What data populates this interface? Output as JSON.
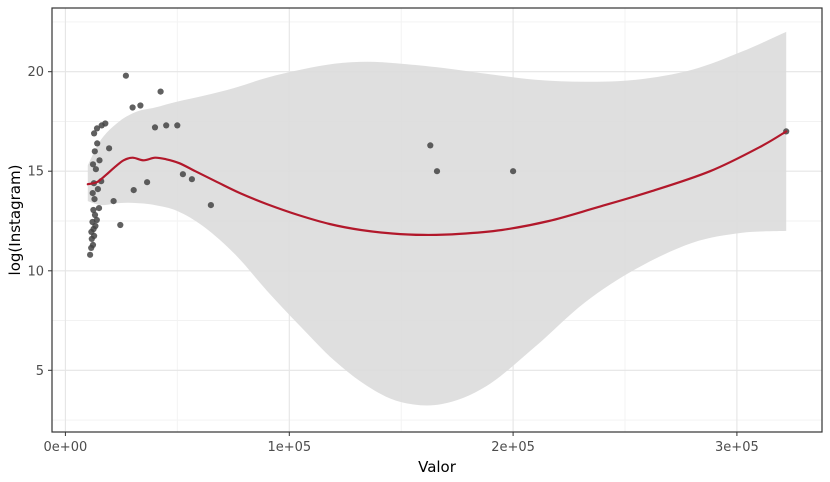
{
  "chart_data": {
    "type": "scatter",
    "title": "",
    "xlabel": "Valor",
    "ylabel": "log(Instagram)",
    "xlim": [
      -6000,
      338000
    ],
    "ylim": [
      1.9,
      23.2
    ],
    "grid": true,
    "legend": "none",
    "x_ticks": {
      "values": [
        0,
        100000,
        200000,
        300000
      ],
      "labels": [
        "0e+00",
        "1e+05",
        "2e+05",
        "3e+05"
      ]
    },
    "y_ticks": {
      "values": [
        5,
        10,
        15,
        20
      ],
      "labels": [
        "5",
        "10",
        "15",
        "20"
      ]
    },
    "x_minor": [
      50000,
      150000,
      250000
    ],
    "y_minor": [
      2.5,
      7.5,
      12.5,
      17.5,
      22.5
    ],
    "colors": {
      "point": "#444444",
      "smooth_line": "#b2182b",
      "ci_band": "#dcdcdc",
      "panel_bg": "#ffffff",
      "panel_border": "#333333",
      "grid_major": "#e5e5e5",
      "grid_minor": "#f2f2f2",
      "axis_text": "#4d4d4d",
      "tick_mark": "#333333"
    },
    "points": [
      [
        11000,
        10.8
      ],
      [
        11500,
        11.15
      ],
      [
        12300,
        11.3
      ],
      [
        11800,
        11.6
      ],
      [
        12800,
        11.75
      ],
      [
        11600,
        11.95
      ],
      [
        12600,
        12.1
      ],
      [
        13400,
        12.25
      ],
      [
        12100,
        12.45
      ],
      [
        14000,
        12.55
      ],
      [
        13200,
        12.8
      ],
      [
        12500,
        13.05
      ],
      [
        15000,
        13.15
      ],
      [
        13000,
        13.6
      ],
      [
        12200,
        13.9
      ],
      [
        14500,
        14.1
      ],
      [
        12700,
        14.4
      ],
      [
        16000,
        14.5
      ],
      [
        13600,
        15.1
      ],
      [
        12300,
        15.35
      ],
      [
        15200,
        15.55
      ],
      [
        13100,
        16.0
      ],
      [
        14200,
        16.4
      ],
      [
        12800,
        16.9
      ],
      [
        14100,
        17.15
      ],
      [
        16200,
        17.3
      ],
      [
        17800,
        17.4
      ],
      [
        19500,
        16.15
      ],
      [
        21500,
        13.5
      ],
      [
        24500,
        12.3
      ],
      [
        27000,
        19.8
      ],
      [
        30000,
        18.2
      ],
      [
        33500,
        18.3
      ],
      [
        30500,
        14.05
      ],
      [
        36500,
        14.45
      ],
      [
        40000,
        17.2
      ],
      [
        42500,
        19.0
      ],
      [
        45000,
        17.3
      ],
      [
        50000,
        17.3
      ],
      [
        52500,
        14.85
      ],
      [
        56500,
        14.6
      ],
      [
        65000,
        13.3
      ],
      [
        163000,
        16.3
      ],
      [
        166000,
        15.0
      ],
      [
        200000,
        15.0
      ],
      [
        322000,
        17.0
      ]
    ],
    "smooth": {
      "x": [
        10000,
        14000,
        18000,
        22000,
        26000,
        30000,
        35000,
        40000,
        45000,
        51000,
        58000,
        67000,
        78000,
        90000,
        104000,
        118000,
        132000,
        146000,
        160000,
        176000,
        195000,
        216000,
        238000,
        262000,
        288000,
        310000,
        322000
      ],
      "y": [
        14.35,
        14.45,
        14.8,
        15.2,
        15.55,
        15.68,
        15.55,
        15.68,
        15.6,
        15.4,
        15.0,
        14.5,
        13.9,
        13.35,
        12.8,
        12.35,
        12.05,
        11.87,
        11.8,
        11.85,
        12.05,
        12.5,
        13.2,
        14.0,
        15.0,
        16.2,
        17.0
      ]
    },
    "band": {
      "x": [
        10000,
        16000,
        24000,
        32000,
        40000,
        50000,
        62000,
        76000,
        90000,
        105000,
        120000,
        135000,
        150000,
        168000,
        188000,
        210000,
        232000,
        255000,
        280000,
        302000,
        322000
      ],
      "upper": [
        15.3,
        16.6,
        17.5,
        18.0,
        18.2,
        18.5,
        18.8,
        19.2,
        19.7,
        20.1,
        20.4,
        20.5,
        20.4,
        20.2,
        19.9,
        19.6,
        19.5,
        19.6,
        20.1,
        21.0,
        22.0
      ],
      "lower": [
        13.5,
        13.3,
        13.4,
        13.4,
        13.3,
        13.0,
        12.2,
        10.8,
        9.0,
        7.2,
        5.5,
        4.2,
        3.4,
        3.3,
        4.2,
        6.2,
        8.4,
        10.1,
        11.4,
        11.9,
        12.0
      ]
    }
  }
}
